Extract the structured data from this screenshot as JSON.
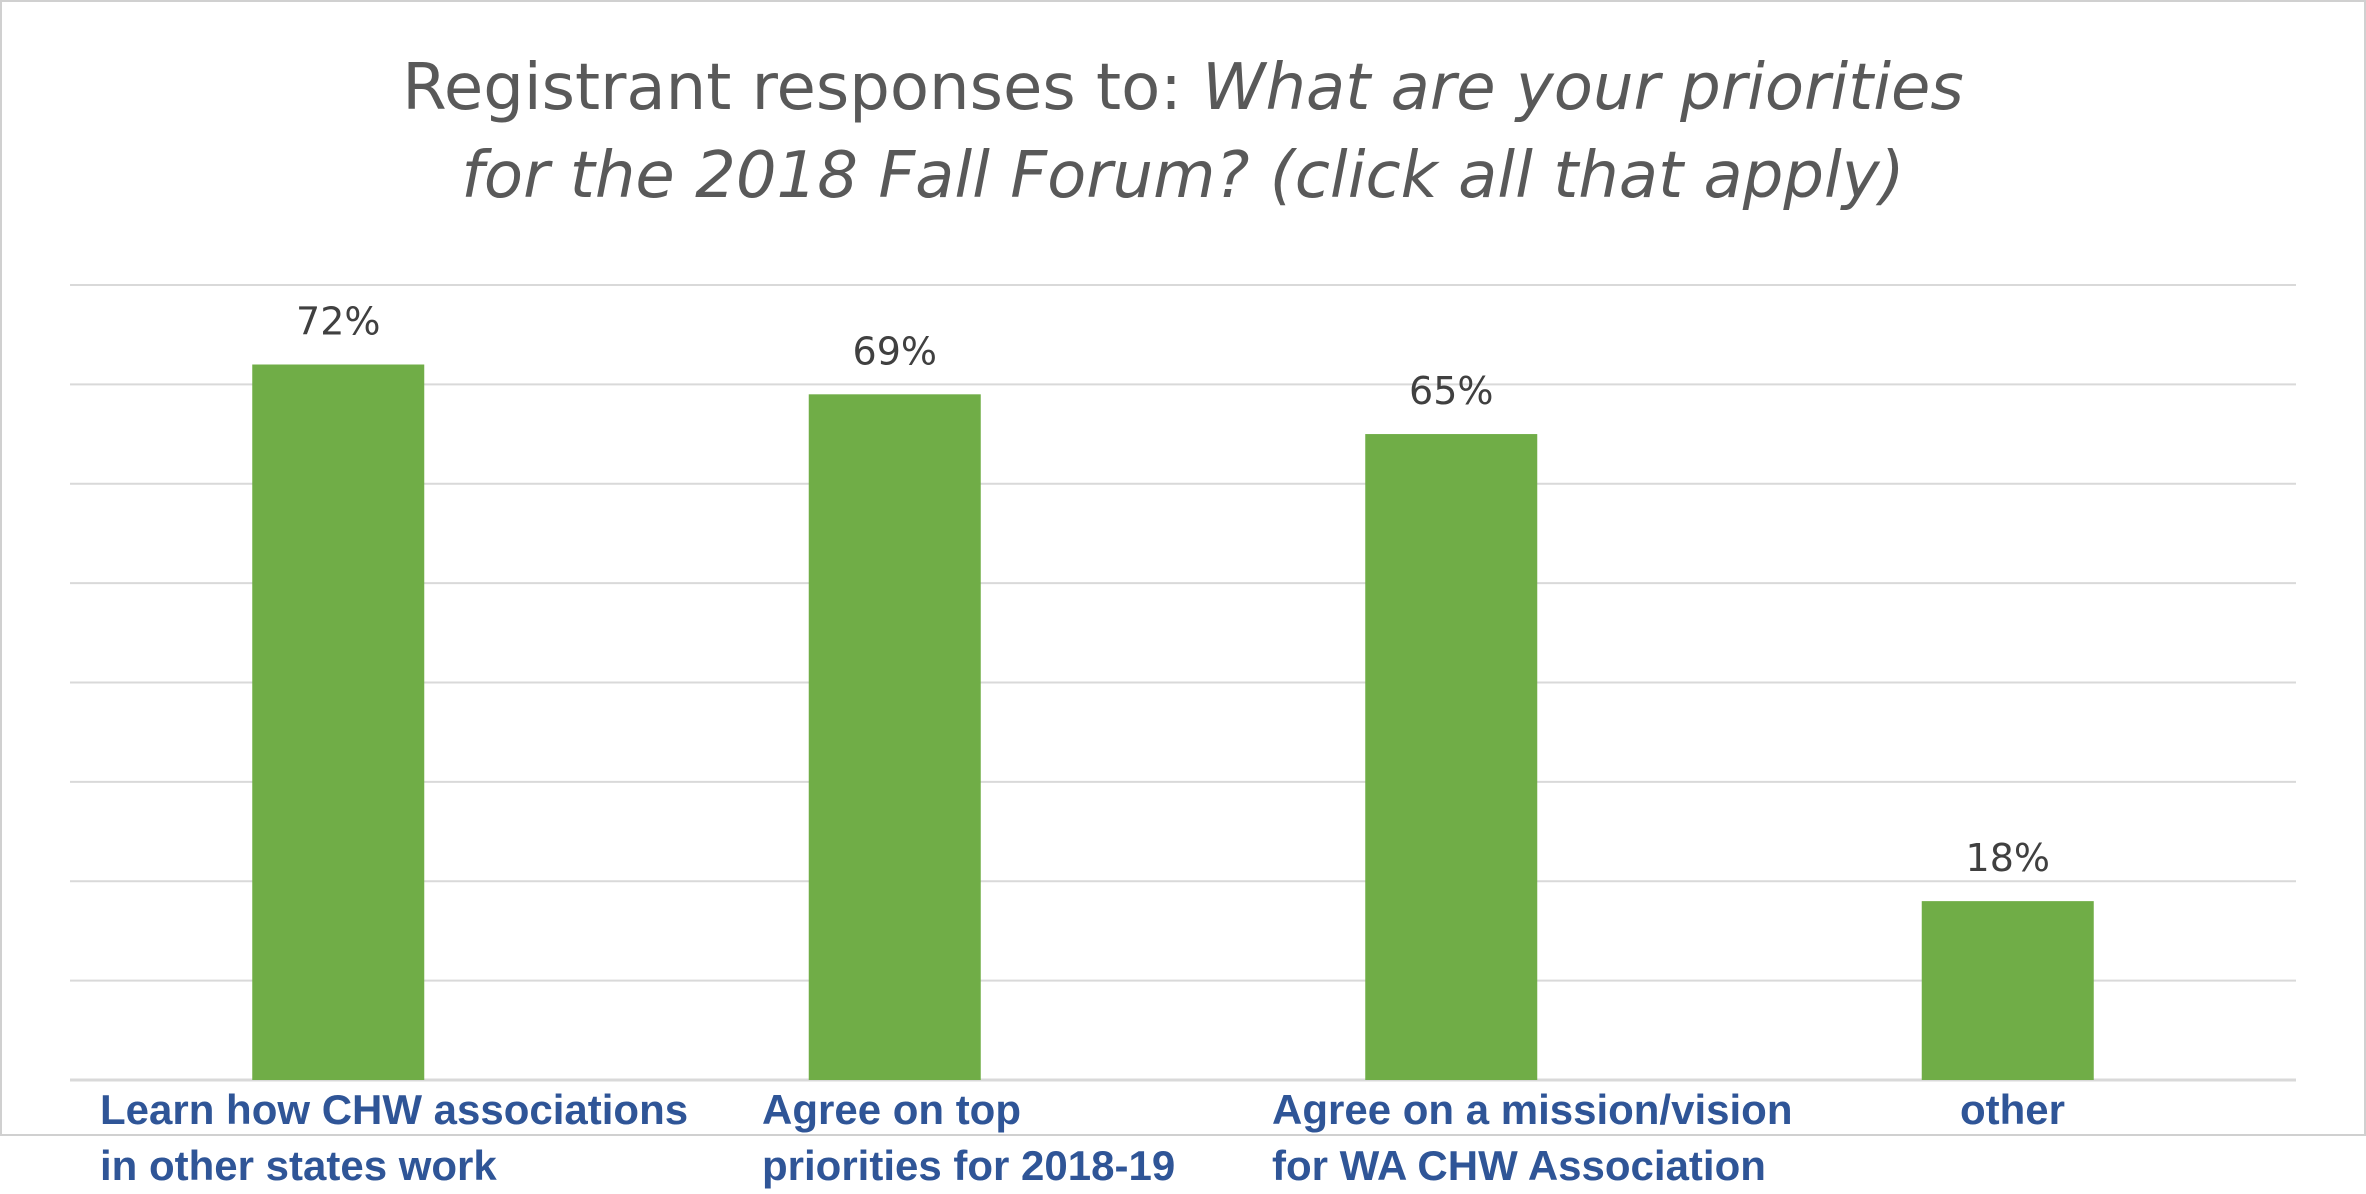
{
  "chart_data": {
    "type": "bar",
    "title_prefix": "Registrant responses to: ",
    "title_question_line1": "What are your priorities",
    "title_question_line2": "for the 2018 Fall Forum? (click all that apply)",
    "categories": [
      {
        "line1": "Learn how CHW associations",
        "line2": "in other states work"
      },
      {
        "line1": "Agree on top",
        "line2": "priorities for 2018-19"
      },
      {
        "line1": "Agree on a mission/vision",
        "line2": "for WA CHW Association"
      },
      {
        "line1": "other",
        "line2": ""
      }
    ],
    "values": [
      72,
      69,
      65,
      18
    ],
    "data_labels": [
      "72%",
      "69%",
      "65%",
      "18%"
    ],
    "ylim": [
      0,
      80
    ],
    "gridlines": true,
    "bar_color": "#70ad47",
    "grid_color": "#d9d9d9",
    "label_color": "#2f5597"
  }
}
